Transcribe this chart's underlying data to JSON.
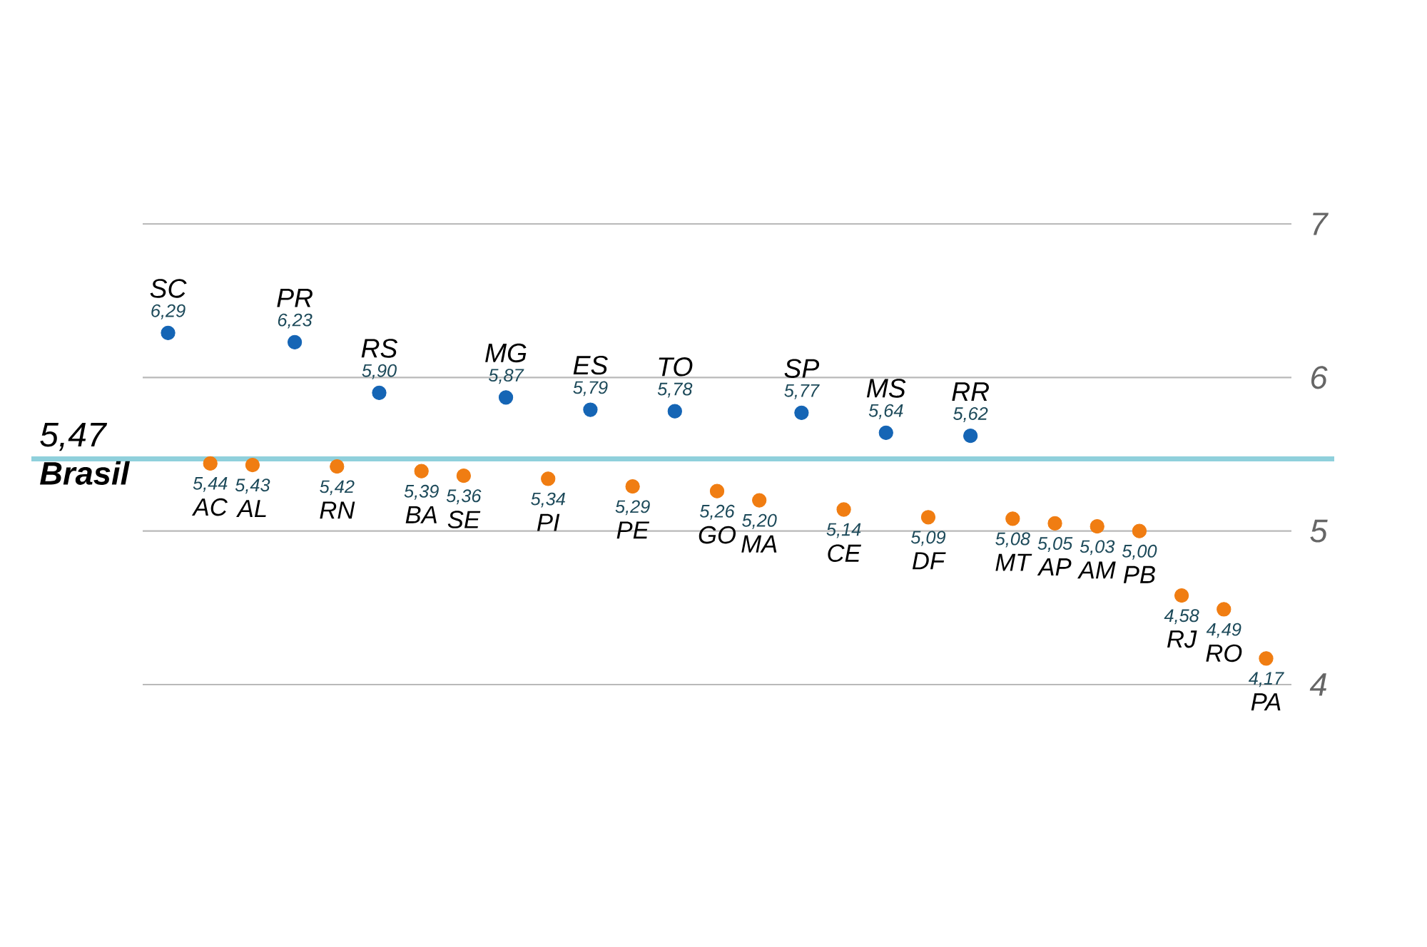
{
  "chart_data": {
    "type": "scatter",
    "categories": [
      "SC",
      "AC",
      "AL",
      "PR",
      "RN",
      "RS",
      "BA",
      "SE",
      "MG",
      "PI",
      "ES",
      "PE",
      "TO",
      "GO",
      "MA",
      "SP",
      "CE",
      "MS",
      "DF",
      "RR",
      "MT",
      "AP",
      "AM",
      "PB",
      "RJ",
      "RO",
      "PA"
    ],
    "series": [
      {
        "color": "#1565b5",
        "values": [
          6.29,
          null,
          null,
          6.23,
          null,
          5.9,
          null,
          null,
          5.87,
          null,
          5.79,
          null,
          5.78,
          null,
          null,
          5.77,
          null,
          5.64,
          null,
          5.62,
          null,
          null,
          null,
          null,
          null,
          null,
          null
        ],
        "value_labels": [
          "6,29",
          null,
          null,
          "6,23",
          null,
          "5,90",
          null,
          null,
          "5,87",
          null,
          "5,79",
          null,
          "5,78",
          null,
          null,
          "5,77",
          null,
          "5,64",
          null,
          "5,62",
          null,
          null,
          null,
          null,
          null,
          null,
          null
        ]
      },
      {
        "color": "#f07d12",
        "values": [
          null,
          5.44,
          5.43,
          null,
          5.42,
          null,
          5.39,
          5.36,
          null,
          5.34,
          null,
          5.29,
          null,
          5.26,
          5.2,
          null,
          5.14,
          null,
          5.09,
          null,
          5.08,
          5.05,
          5.03,
          5.0,
          4.58,
          4.49,
          4.17
        ],
        "value_labels": [
          null,
          "5,44",
          "5,43",
          null,
          "5,42",
          null,
          "5,39",
          "5,36",
          null,
          "5,34",
          null,
          "5,29",
          null,
          "5,26",
          "5,20",
          null,
          "5,14",
          null,
          "5,09",
          null,
          "5,08",
          "5,05",
          "5,03",
          "5,00",
          "4,58",
          "4,49",
          "4,17"
        ]
      }
    ],
    "ylim": [
      4,
      7
    ],
    "yticks": [
      4,
      5,
      6,
      7
    ],
    "grid": "y",
    "ref_lines": [
      {
        "axis": "y",
        "value": 5.47,
        "label": "Brasil",
        "color": "#8fd0dc"
      }
    ],
    "annotations": [
      {
        "text": "5,47",
        "y": 5.47
      }
    ]
  }
}
